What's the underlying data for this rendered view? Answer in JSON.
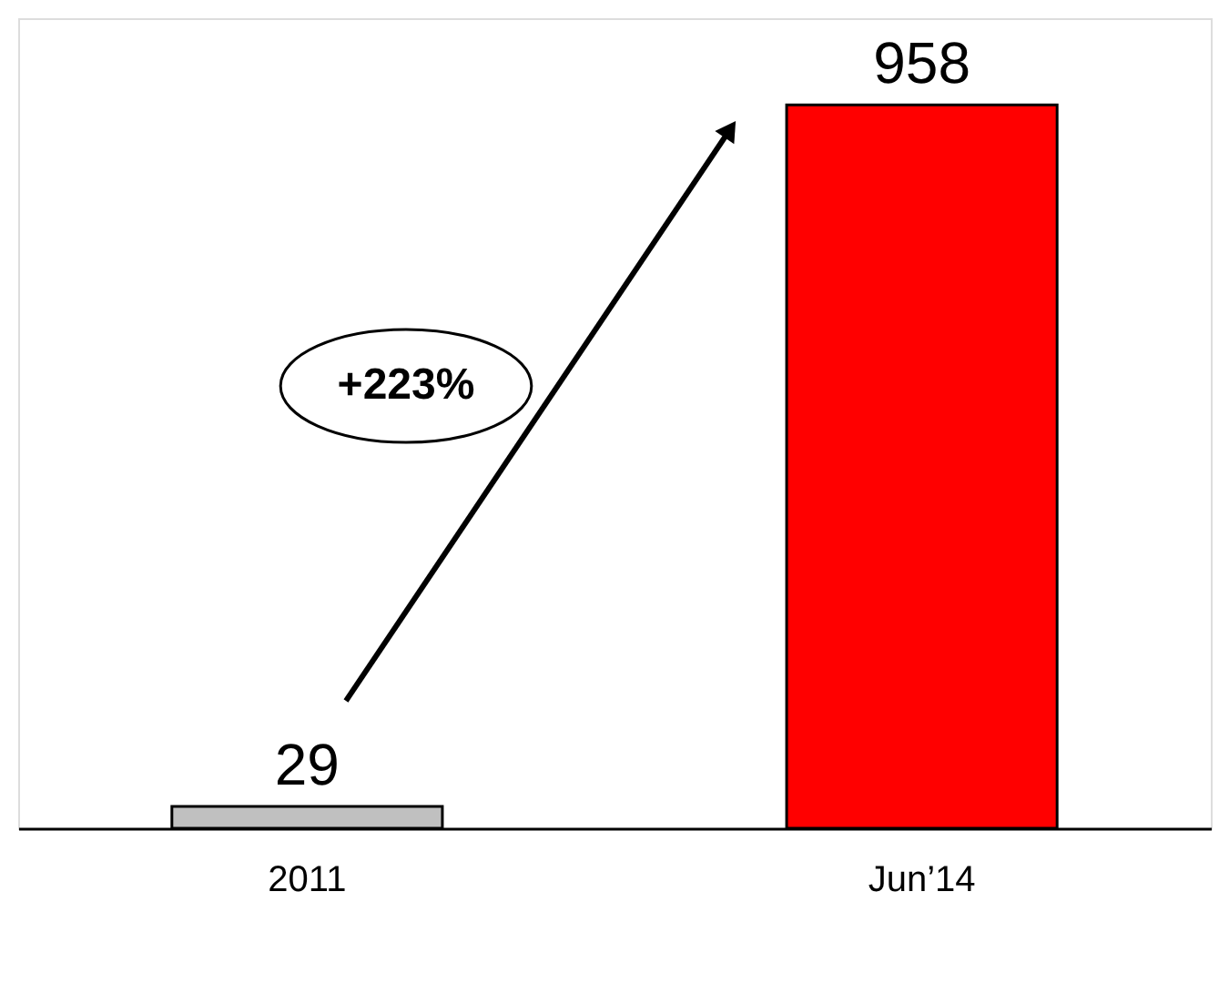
{
  "chart_data": {
    "type": "bar",
    "categories": [
      "2011",
      "Jun’14"
    ],
    "values": [
      29,
      958
    ],
    "colors": [
      "#c0c0c0",
      "#ff0000"
    ],
    "data_labels": true,
    "annotations": [
      "+223%"
    ]
  }
}
